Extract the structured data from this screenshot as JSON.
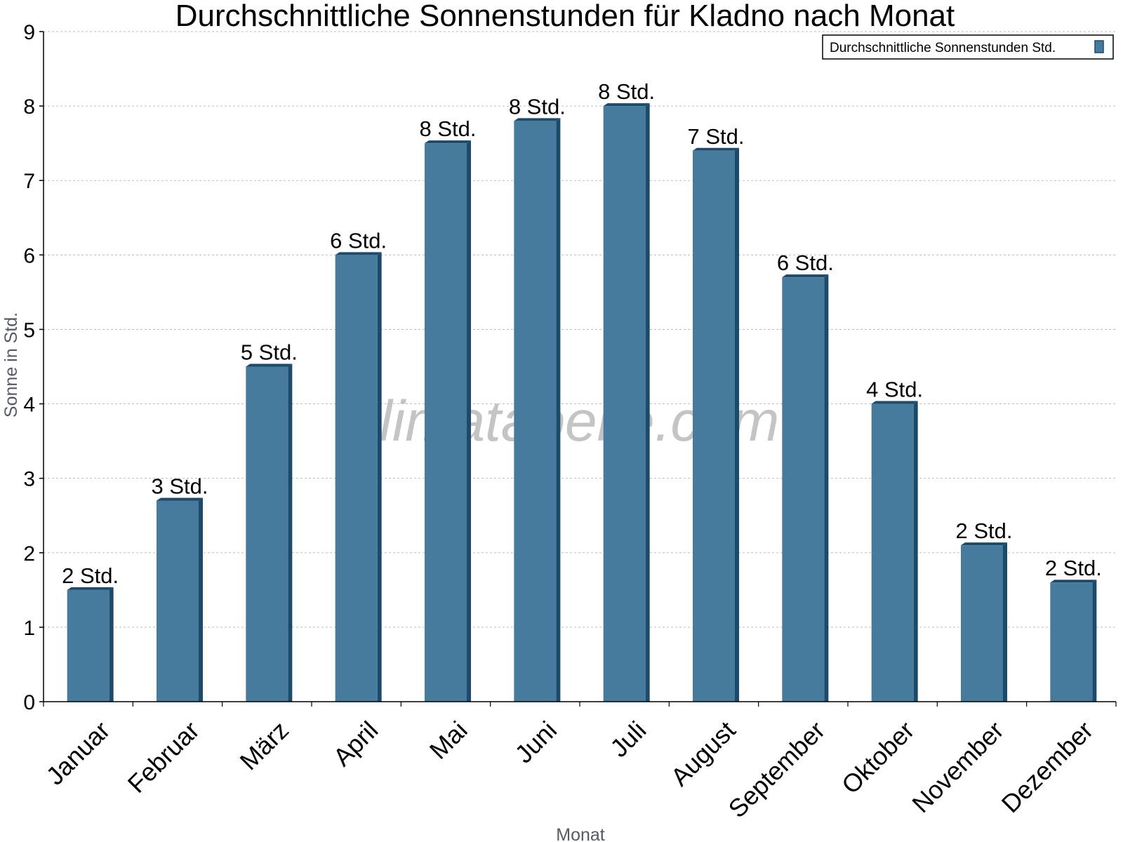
{
  "chart_data": {
    "type": "bar",
    "title": "Durchschnittliche Sonnenstunden für Kladno nach Monat",
    "xlabel": "Monat",
    "ylabel": "Sonne in Std.",
    "ylim": [
      0,
      9
    ],
    "yticks": [
      "0",
      "1",
      "2",
      "3",
      "4",
      "5",
      "6",
      "7",
      "8",
      "9"
    ],
    "grid": true,
    "legend_position": "top-right",
    "categories": [
      "Januar",
      "Februar",
      "März",
      "April",
      "Mai",
      "Juni",
      "Juli",
      "August",
      "September",
      "Oktober",
      "November",
      "Dezember"
    ],
    "series": [
      {
        "name": "Durchschnittliche Sonnenstunden Std.",
        "values": [
          1.5,
          2.7,
          4.5,
          6.0,
          7.5,
          7.8,
          8.0,
          7.4,
          5.7,
          4.0,
          2.1,
          1.6
        ],
        "labels": [
          "2 Std.",
          "3 Std.",
          "5 Std.",
          "6 Std.",
          "8 Std.",
          "8 Std.",
          "8 Std.",
          "7 Std.",
          "6 Std.",
          "4 Std.",
          "2 Std.",
          "2 Std."
        ],
        "color": "#467b9e",
        "edge_color": "#1b4a6b"
      }
    ],
    "watermark": "klimatabelle.com"
  }
}
